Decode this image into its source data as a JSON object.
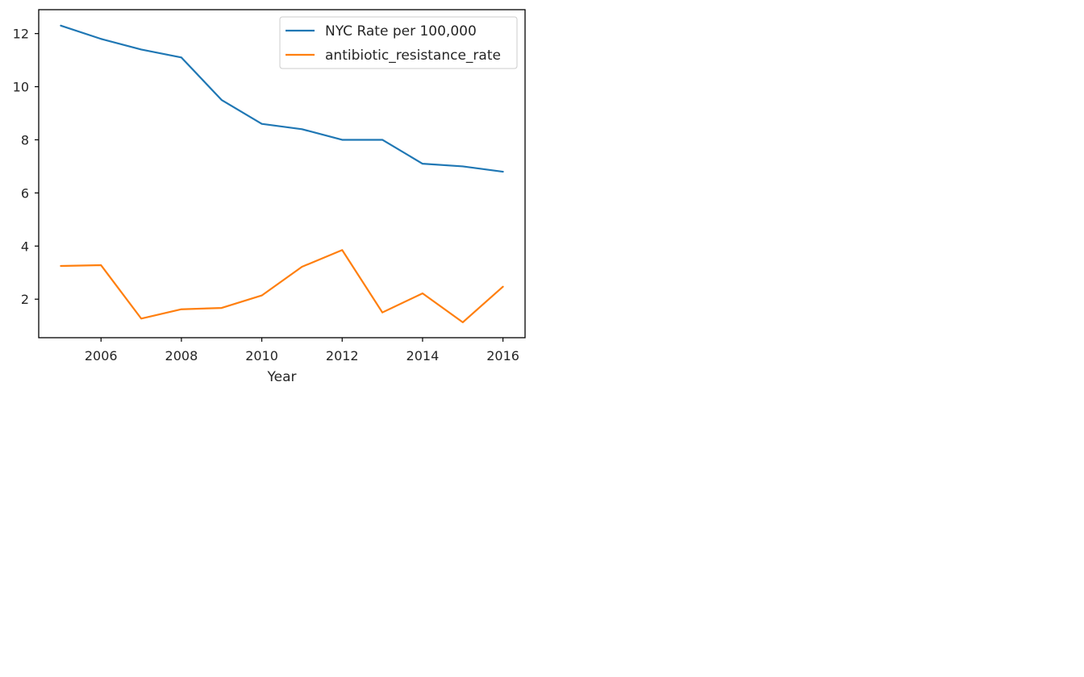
{
  "chart_data": {
    "type": "line",
    "title": "",
    "xlabel": "Year",
    "ylabel": "",
    "xlim": [
      2004.45,
      2016.55
    ],
    "ylim": [
      0.55,
      12.9
    ],
    "xticks": [
      2006,
      2008,
      2010,
      2012,
      2014,
      2016
    ],
    "yticks": [
      2,
      4,
      6,
      8,
      10,
      12
    ],
    "grid": false,
    "legend_position": "top-right",
    "x": [
      2005,
      2006,
      2007,
      2008,
      2009,
      2010,
      2011,
      2012,
      2013,
      2014,
      2015,
      2016
    ],
    "series": [
      {
        "name": "NYC Rate per 100,000",
        "color": "#1f77b4",
        "values": [
          12.3,
          11.8,
          11.4,
          11.1,
          9.5,
          8.6,
          8.4,
          8.0,
          8.0,
          7.1,
          7.0,
          6.8
        ]
      },
      {
        "name": "antibiotic_resistance_rate",
        "color": "#ff7f0e",
        "values": [
          3.25,
          3.28,
          1.27,
          1.62,
          1.67,
          2.14,
          3.22,
          3.85,
          1.5,
          2.22,
          1.13,
          2.47
        ]
      }
    ]
  }
}
